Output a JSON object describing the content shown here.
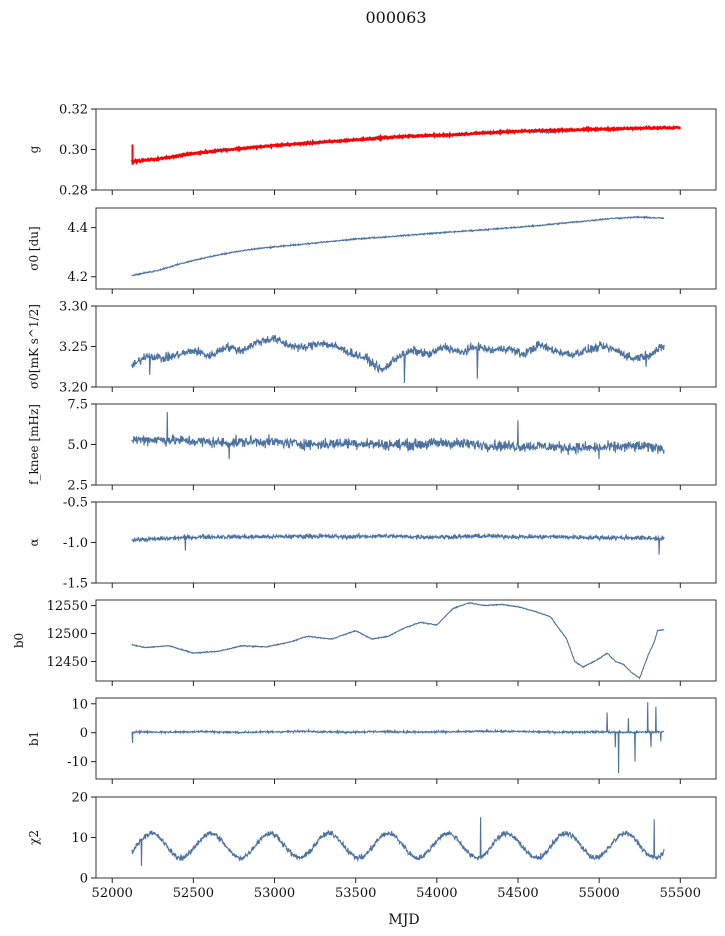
{
  "chart_data": {
    "type": "line",
    "title": "000063",
    "xlabel": "MJD",
    "xlim": [
      51900,
      55720
    ],
    "xticks": [
      "52000",
      "52500",
      "53000",
      "53500",
      "54000",
      "54500",
      "55000",
      "55500"
    ],
    "series_color": "#4c72a0",
    "overlay_color": "#ff0000",
    "x_start": 52120,
    "x_end": 55400,
    "panels": [
      {
        "id": "g",
        "ylabel": "g",
        "ylim": [
          0.28,
          0.32
        ],
        "yticks": [
          "0.28",
          "0.30",
          "0.32"
        ],
        "line_y": [
          0.294,
          0.2955,
          0.2975,
          0.2995,
          0.3005,
          0.302,
          0.3032,
          0.304,
          0.305,
          0.3062,
          0.307,
          0.3065,
          0.3078,
          0.3088,
          0.309,
          0.3085,
          0.3095,
          0.31,
          0.3105,
          0.311
        ],
        "line_noise": 0.0008,
        "overlay_y": [
          0.294,
          0.2955,
          0.2978,
          0.2995,
          0.3008,
          0.302,
          0.303,
          0.304,
          0.305,
          0.306,
          0.3068,
          0.3072,
          0.308,
          0.3087,
          0.3093,
          0.3097,
          0.31,
          0.3103,
          0.3106,
          0.311
        ],
        "overlay_x_end": 55500
      },
      {
        "id": "sigma0_du",
        "ylabel": "σ0 [du]",
        "ylim": [
          4.15,
          4.48
        ],
        "yticks": [
          "4.2",
          "4.4"
        ],
        "line_y": [
          4.205,
          4.225,
          4.255,
          4.28,
          4.3,
          4.315,
          4.325,
          4.335,
          4.345,
          4.355,
          4.362,
          4.37,
          4.378,
          4.385,
          4.392,
          4.4,
          4.408,
          4.418,
          4.428,
          4.438,
          4.443,
          4.438
        ],
        "line_noise": 0.004
      },
      {
        "id": "sigma0_mK",
        "ylabel": "σ0[mK s^1/2]",
        "ylim": [
          3.2,
          3.3
        ],
        "yticks": [
          "3.20",
          "3.25",
          "3.30"
        ],
        "line_y": [
          3.225,
          3.24,
          3.235,
          3.24,
          3.245,
          3.238,
          3.25,
          3.245,
          3.255,
          3.26,
          3.252,
          3.248,
          3.255,
          3.25,
          3.242,
          3.235,
          3.22,
          3.238,
          3.245,
          3.24,
          3.25,
          3.242,
          3.25,
          3.245,
          3.248,
          3.24,
          3.252,
          3.245,
          3.24,
          3.245,
          3.25,
          3.245,
          3.235,
          3.24,
          3.25
        ],
        "line_noise": 0.008,
        "dips": [
          [
            52230,
            3.215
          ],
          [
            53800,
            3.205
          ],
          [
            54250,
            3.21
          ],
          [
            55290,
            3.225
          ]
        ]
      },
      {
        "id": "fknee",
        "ylabel": "f_knee [mHz]",
        "ylim": [
          2.5,
          7.5
        ],
        "yticks": [
          "2.5",
          "5.0",
          "7.5"
        ],
        "line_y": [
          5.3,
          5.3,
          5.2,
          5.1,
          5.2,
          5.1,
          5.0,
          5.1,
          5.0,
          5.0,
          5.1,
          5.0,
          4.9,
          4.9,
          4.8,
          4.8,
          4.9,
          4.8
        ],
        "line_noise": 0.5,
        "spikes": [
          [
            52340,
            7.0
          ],
          [
            52720,
            4.1
          ],
          [
            54500,
            6.5
          ],
          [
            55000,
            4.1
          ]
        ]
      },
      {
        "id": "alpha",
        "ylabel": "α",
        "ylim": [
          -1.5,
          -0.5
        ],
        "yticks": [
          "-1.5",
          "-1.0",
          "-0.5"
        ],
        "line_y": [
          -0.97,
          -0.95,
          -0.93,
          -0.93,
          -0.93,
          -0.92,
          -0.93,
          -0.92,
          -0.93,
          -0.93,
          -0.92,
          -0.93,
          -0.93,
          -0.94,
          -0.94,
          -0.95
        ],
        "line_noise": 0.04,
        "spikes": [
          [
            52450,
            -1.1
          ],
          [
            55370,
            -1.15
          ]
        ]
      },
      {
        "id": "b0",
        "ylabel": "b0",
        "ylim": [
          12415,
          12560
        ],
        "yticks": [
          "12450",
          "12500",
          "12550"
        ],
        "points": [
          [
            52120,
            12480
          ],
          [
            52200,
            12475
          ],
          [
            52350,
            12478
          ],
          [
            52500,
            12465
          ],
          [
            52650,
            12468
          ],
          [
            52800,
            12478
          ],
          [
            52950,
            12476
          ],
          [
            53100,
            12485
          ],
          [
            53200,
            12495
          ],
          [
            53350,
            12490
          ],
          [
            53500,
            12505
          ],
          [
            53600,
            12490
          ],
          [
            53700,
            12495
          ],
          [
            53800,
            12510
          ],
          [
            53900,
            12520
          ],
          [
            54000,
            12515
          ],
          [
            54100,
            12545
          ],
          [
            54200,
            12555
          ],
          [
            54300,
            12550
          ],
          [
            54400,
            12552
          ],
          [
            54500,
            12548
          ],
          [
            54600,
            12540
          ],
          [
            54700,
            12530
          ],
          [
            54800,
            12490
          ],
          [
            54850,
            12450
          ],
          [
            54900,
            12440
          ],
          [
            55000,
            12455
          ],
          [
            55050,
            12465
          ],
          [
            55100,
            12450
          ],
          [
            55150,
            12445
          ],
          [
            55200,
            12430
          ],
          [
            55250,
            12420
          ],
          [
            55300,
            12460
          ],
          [
            55340,
            12485
          ],
          [
            55360,
            12505
          ],
          [
            55400,
            12507
          ]
        ],
        "line_noise": 1.2
      },
      {
        "id": "b1",
        "ylabel": "b1",
        "ylim": [
          -16,
          12
        ],
        "yticks": [
          "-10",
          "0",
          "10"
        ],
        "line_y": [
          0.3,
          0.2,
          0.4,
          0.1,
          0.3,
          0.5,
          0.2,
          0.4,
          0.2,
          0.3,
          0.5,
          0.4,
          0.2,
          0.3,
          0.1,
          0.3
        ],
        "line_noise": 0.5,
        "spikes": [
          [
            52125,
            -3.5
          ],
          [
            55050,
            7.0
          ],
          [
            55100,
            -5.0
          ],
          [
            55120,
            -14.0
          ],
          [
            55180,
            5.0
          ],
          [
            55220,
            -10.0
          ],
          [
            55300,
            10.5
          ],
          [
            55320,
            -5.0
          ],
          [
            55350,
            9.0
          ],
          [
            55380,
            -3.0
          ]
        ]
      },
      {
        "id": "chi2",
        "ylabel": "χ2",
        "ylim": [
          0,
          20
        ],
        "yticks": [
          "0",
          "10",
          "20"
        ],
        "center": 8.0,
        "amplitude": 3.0,
        "period": 365,
        "line_noise": 1.0,
        "spikes": [
          [
            54270,
            15.0
          ],
          [
            55340,
            14.5
          ],
          [
            52180,
            3.0
          ]
        ]
      }
    ]
  }
}
